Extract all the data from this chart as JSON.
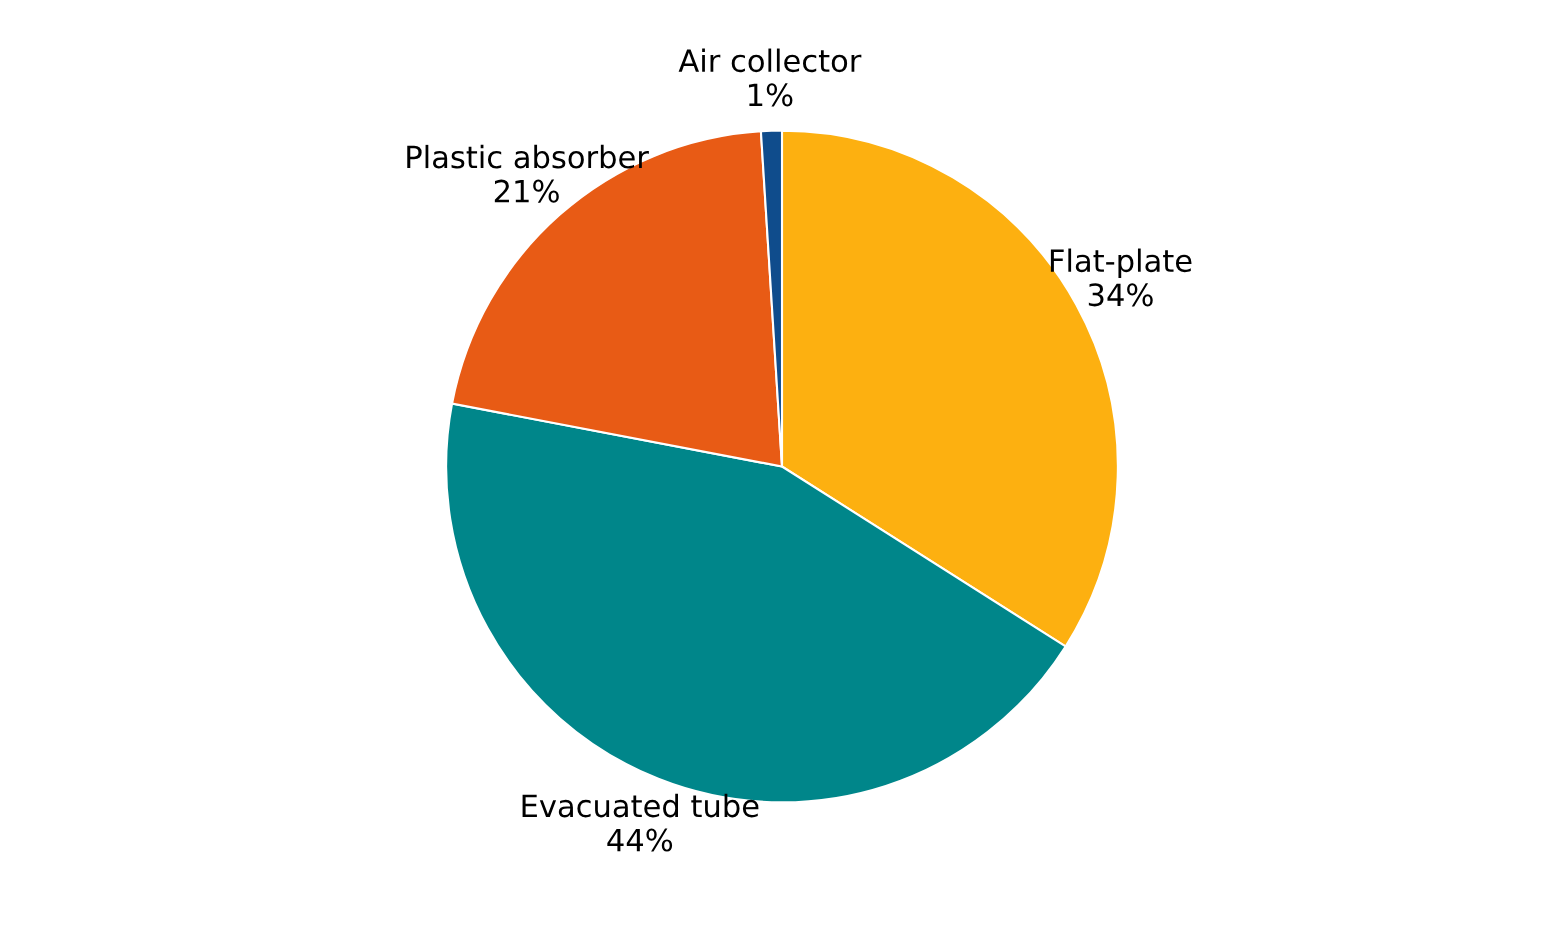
{
  "chart_data": {
    "type": "pie",
    "categories": [
      "Flat-plate",
      "Evacuated tube",
      "Plastic absorber",
      "Air collector"
    ],
    "values": [
      34,
      44,
      21,
      1
    ],
    "value_labels": [
      "34%",
      "44%",
      "21%",
      "1%"
    ],
    "colors": [
      "#fdb010",
      "#00868a",
      "#e85b15",
      "#0f4c8c"
    ],
    "legend": false
  }
}
